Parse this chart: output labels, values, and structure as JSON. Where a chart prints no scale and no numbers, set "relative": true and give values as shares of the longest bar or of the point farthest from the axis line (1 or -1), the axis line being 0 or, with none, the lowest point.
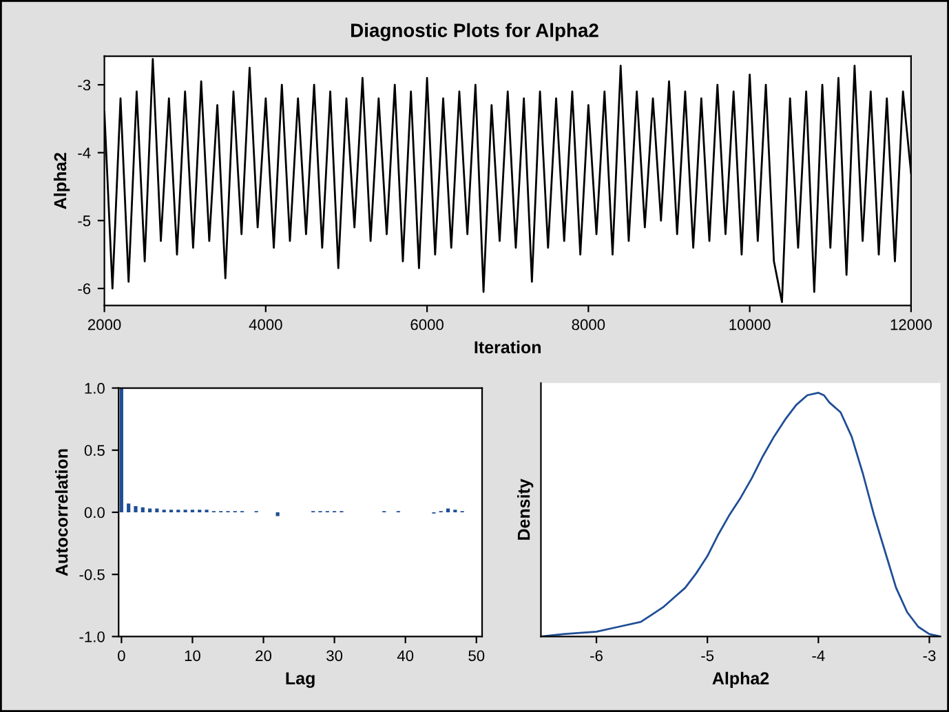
{
  "chart_data": [
    {
      "type": "line",
      "title": "Diagnostic Plots for Alpha2",
      "xlabel": "Iteration",
      "ylabel": "Alpha2",
      "xlim": [
        2000,
        12000
      ],
      "ylim": [
        -6.25,
        -2.58
      ],
      "xticks": [
        2000,
        4000,
        6000,
        8000,
        10000,
        12000
      ],
      "yticks": [
        -3,
        -4,
        -5,
        -6
      ],
      "grid": false,
      "legend": false,
      "x": [
        2000,
        2100,
        2200,
        2300,
        2400,
        2500,
        2600,
        2700,
        2800,
        2900,
        3000,
        3100,
        3200,
        3300,
        3400,
        3500,
        3600,
        3700,
        3800,
        3900,
        4000,
        4100,
        4200,
        4300,
        4400,
        4500,
        4600,
        4700,
        4800,
        4900,
        5000,
        5100,
        5200,
        5300,
        5400,
        5500,
        5600,
        5700,
        5800,
        5900,
        6000,
        6100,
        6200,
        6300,
        6400,
        6500,
        6600,
        6700,
        6800,
        6900,
        7000,
        7100,
        7200,
        7300,
        7400,
        7500,
        7600,
        7700,
        7800,
        7900,
        8000,
        8100,
        8200,
        8300,
        8400,
        8500,
        8600,
        8700,
        8800,
        8900,
        9000,
        9100,
        9200,
        9300,
        9400,
        9500,
        9600,
        9700,
        9800,
        9900,
        10000,
        10100,
        10200,
        10300,
        10400,
        10500,
        10600,
        10700,
        10800,
        10900,
        11000,
        11100,
        11200,
        11300,
        11400,
        11500,
        11600,
        11700,
        11800,
        11900,
        12000
      ],
      "series": [
        {
          "color": "#000000",
          "values": [
            -3.4,
            -6.0,
            -3.2,
            -5.9,
            -3.1,
            -5.6,
            -2.62,
            -5.3,
            -3.2,
            -5.5,
            -3.1,
            -5.4,
            -2.95,
            -5.3,
            -3.3,
            -5.85,
            -3.1,
            -5.2,
            -2.75,
            -5.1,
            -3.2,
            -5.4,
            -3.0,
            -5.3,
            -3.2,
            -5.2,
            -3.0,
            -5.4,
            -3.1,
            -5.7,
            -3.2,
            -5.1,
            -2.9,
            -5.3,
            -3.2,
            -5.2,
            -3.0,
            -5.6,
            -3.1,
            -5.7,
            -2.9,
            -5.5,
            -3.2,
            -5.4,
            -3.1,
            -5.2,
            -3.0,
            -6.05,
            -3.3,
            -5.3,
            -3.1,
            -5.4,
            -3.2,
            -5.9,
            -3.1,
            -5.4,
            -3.2,
            -5.3,
            -3.1,
            -5.5,
            -3.3,
            -5.2,
            -3.1,
            -5.5,
            -2.72,
            -5.3,
            -3.1,
            -5.1,
            -3.2,
            -5.0,
            -2.95,
            -5.2,
            -3.1,
            -5.4,
            -3.2,
            -5.3,
            -3.0,
            -5.2,
            -3.1,
            -5.5,
            -2.85,
            -5.3,
            -3.0,
            -5.6,
            -6.2,
            -3.2,
            -5.4,
            -3.1,
            -6.05,
            -3.0,
            -5.4,
            -2.9,
            -5.8,
            -2.72,
            -5.3,
            -3.1,
            -5.5,
            -3.2,
            -5.6,
            -3.1,
            -4.3
          ]
        }
      ]
    },
    {
      "type": "bar",
      "xlabel": "Lag",
      "ylabel": "Autocorrelation",
      "xlim": [
        -0.4,
        50.8
      ],
      "ylim": [
        -1.0,
        1.0
      ],
      "xticks": [
        0,
        10,
        20,
        30,
        40,
        50
      ],
      "yticks": [
        {
          "value": -1.0,
          "label": "-1.0"
        },
        {
          "value": -0.5,
          "label": "-0.5"
        },
        {
          "value": 0.0,
          "label": "0.0"
        },
        {
          "value": 0.5,
          "label": "0.5"
        },
        {
          "value": 1.0,
          "label": "1.0"
        }
      ],
      "grid": false,
      "legend": false,
      "x": [
        0,
        1,
        2,
        3,
        4,
        5,
        6,
        7,
        8,
        9,
        10,
        11,
        12,
        13,
        14,
        15,
        16,
        17,
        18,
        19,
        20,
        21,
        22,
        23,
        24,
        25,
        26,
        27,
        28,
        29,
        30,
        31,
        32,
        33,
        34,
        35,
        36,
        37,
        38,
        39,
        40,
        41,
        42,
        43,
        44,
        45,
        46,
        47,
        48
      ],
      "series": [
        {
          "color": "#1f4e96",
          "values": [
            1.0,
            0.07,
            0.05,
            0.04,
            0.03,
            0.03,
            0.02,
            0.02,
            0.02,
            0.02,
            0.02,
            0.02,
            0.02,
            0.01,
            0.01,
            0.01,
            0.01,
            0.01,
            0.0,
            0.01,
            0.0,
            0.0,
            -0.03,
            0.0,
            0.0,
            0.0,
            0.0,
            0.01,
            0.01,
            0.01,
            0.01,
            0.01,
            0.0,
            0.0,
            0.0,
            0.0,
            0.0,
            0.01,
            0.0,
            0.01,
            0.0,
            0.0,
            0.0,
            0.0,
            -0.01,
            0.01,
            0.03,
            0.02,
            0.01
          ]
        }
      ]
    },
    {
      "type": "line",
      "relative": true,
      "xlabel": "Alpha2",
      "ylabel": "Density",
      "xlim": [
        -6.5,
        -2.9
      ],
      "xticks": [
        -6,
        -5,
        -4,
        -3
      ],
      "grid": false,
      "legend": false,
      "x": [
        -6.5,
        -6.3,
        -6.0,
        -5.8,
        -5.6,
        -5.5,
        -5.4,
        -5.3,
        -5.2,
        -5.1,
        -5.0,
        -4.9,
        -4.8,
        -4.7,
        -4.6,
        -4.5,
        -4.4,
        -4.3,
        -4.2,
        -4.1,
        -4.0,
        -3.95,
        -3.9,
        -3.8,
        -3.7,
        -3.6,
        -3.5,
        -3.4,
        -3.3,
        -3.2,
        -3.1,
        -3.0,
        -2.9
      ],
      "series": [
        {
          "color": "#1f4e96",
          "values": [
            0.0,
            0.01,
            0.02,
            0.04,
            0.06,
            0.09,
            0.12,
            0.16,
            0.2,
            0.26,
            0.33,
            0.42,
            0.5,
            0.57,
            0.65,
            0.74,
            0.82,
            0.89,
            0.95,
            0.99,
            1.0,
            0.99,
            0.96,
            0.92,
            0.82,
            0.67,
            0.5,
            0.35,
            0.2,
            0.1,
            0.04,
            0.01,
            0.0
          ]
        }
      ]
    }
  ]
}
